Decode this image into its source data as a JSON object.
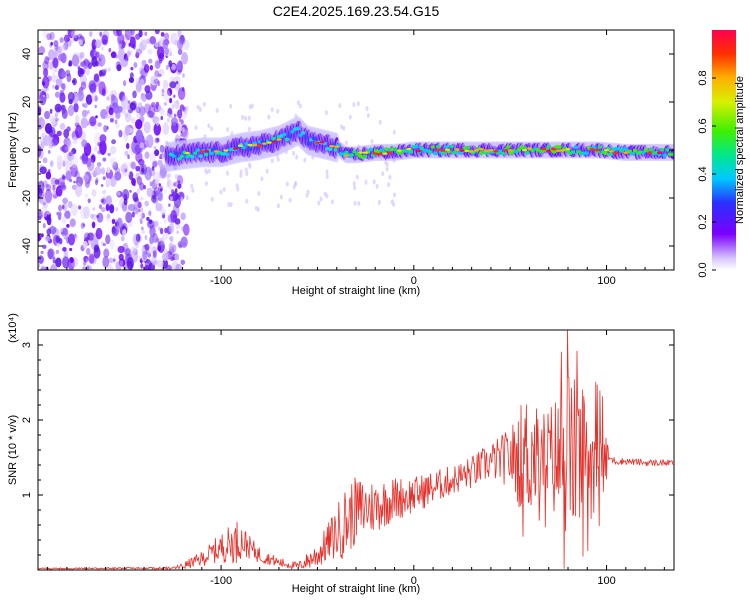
{
  "title": "C2E4.2025.169.23.54.G15",
  "colors": {
    "snr_line": "#e8302a",
    "spectrogram_low": "#6a00ff",
    "axis": "#000000"
  },
  "chart_data": [
    {
      "type": "heatmap",
      "xlabel": "Height of straight line (km)",
      "ylabel": "Frequency (Hz)",
      "xlim": [
        -195,
        135
      ],
      "ylim": [
        -50,
        50
      ],
      "xticks": [
        -100,
        0,
        100
      ],
      "yticks": [
        -40,
        -20,
        0,
        20,
        40
      ],
      "colorbar": {
        "label": "Normalized spectral amplitude",
        "range": [
          0.0,
          1.0
        ],
        "ticks": [
          "0.0",
          "0.2",
          "0.4",
          "0.6",
          "0.8"
        ],
        "colormap": "rainbow-white-to-purple-to-red"
      },
      "noise_region_x": [
        -195,
        -128
      ],
      "ridge": {
        "x": [
          -128,
          -120,
          -110,
          -100,
          -90,
          -80,
          -70,
          -65,
          -60,
          -55,
          -50,
          -45,
          -40,
          -35,
          -30,
          -20,
          -10,
          0,
          20,
          40,
          60,
          80,
          95,
          110,
          135
        ],
        "freq": [
          -3,
          -2,
          -1,
          -1,
          1,
          2,
          4,
          6,
          8,
          4,
          3,
          2,
          1,
          -2,
          -2,
          -1,
          -1,
          0,
          0,
          0,
          0,
          0,
          0,
          -1,
          -1
        ]
      }
    },
    {
      "type": "line",
      "xlabel": "Height of straight line (km)",
      "ylabel": "SNR (10 * v/v)",
      "y_scale_label": "(x10⁴)",
      "xlim": [
        -195,
        135
      ],
      "ylim": [
        0,
        3.2
      ],
      "xticks": [
        -100,
        0,
        100
      ],
      "yticks": [
        1,
        2,
        3
      ],
      "series": [
        {
          "envelope_x": [
            -195,
            -125,
            -120,
            -110,
            -100,
            -90,
            -80,
            -70,
            -60,
            -50,
            -40,
            -30,
            -20,
            -10,
            0,
            10,
            20,
            30,
            40,
            50,
            55,
            60,
            65,
            70,
            75,
            80,
            85,
            90,
            95,
            100,
            105,
            110,
            120,
            135
          ],
          "envelope_y": [
            0.02,
            0.02,
            0.05,
            0.15,
            0.3,
            0.4,
            0.2,
            0.1,
            0.05,
            0.2,
            0.5,
            0.8,
            0.85,
            0.95,
            1.0,
            1.1,
            1.2,
            1.3,
            1.45,
            1.5,
            1.5,
            1.55,
            1.5,
            1.5,
            1.5,
            1.55,
            1.5,
            1.5,
            1.5,
            1.5,
            1.45,
            1.45,
            1.43,
            1.43
          ],
          "amp_x": [
            -195,
            -125,
            -110,
            -100,
            -92,
            -85,
            -75,
            -60,
            -45,
            -35,
            -25,
            -10,
            0,
            20,
            40,
            50,
            55,
            60,
            65,
            70,
            75,
            80,
            85,
            90,
            95,
            100,
            101,
            135
          ],
          "amp_y": [
            0.01,
            0.02,
            0.1,
            0.2,
            0.3,
            0.15,
            0.08,
            0.05,
            0.25,
            0.5,
            0.4,
            0.3,
            0.25,
            0.2,
            0.25,
            0.4,
            0.7,
            0.9,
            0.6,
            0.7,
            0.9,
            1.2,
            1.0,
            0.9,
            0.7,
            0.5,
            0.05,
            0.04
          ]
        }
      ]
    }
  ]
}
